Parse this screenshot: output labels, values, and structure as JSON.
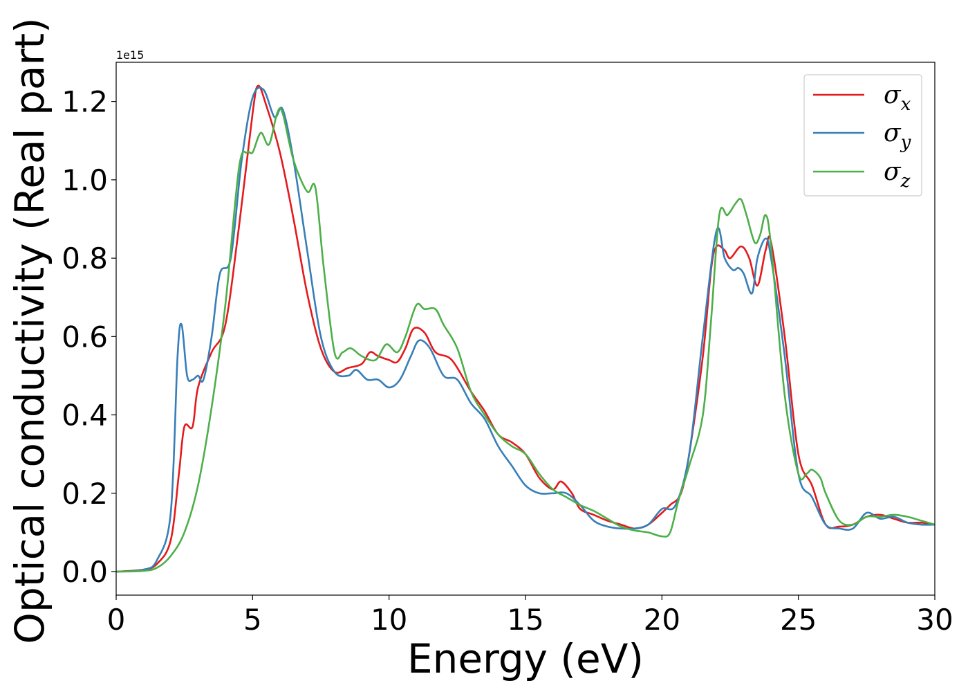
{
  "chart_data": {
    "type": "line",
    "xlabel": "Energy (eV)",
    "ylabel": "Optical conductivity (Real part)",
    "y_offset_label": "1e15",
    "xlim": [
      0,
      30
    ],
    "ylim": [
      -0.06,
      1.3
    ],
    "x_ticks": [
      0,
      5,
      10,
      15,
      20,
      25,
      30
    ],
    "x_tick_labels": [
      "0",
      "5",
      "10",
      "15",
      "20",
      "25",
      "30"
    ],
    "y_ticks": [
      0.0,
      0.2,
      0.4,
      0.6,
      0.8,
      1.0,
      1.2
    ],
    "y_tick_labels": [
      "0.0",
      "0.2",
      "0.4",
      "0.6",
      "0.8",
      "1.0",
      "1.2"
    ],
    "grid": false,
    "legend_position": "top-right",
    "series": [
      {
        "name": "σx",
        "legend_symbol": "σ",
        "legend_subscript": "x",
        "color": "#e41a1c",
        "x": [
          0,
          1,
          1.5,
          2,
          2.3,
          2.5,
          2.8,
          3,
          3.5,
          4,
          4.5,
          5,
          5.2,
          5.5,
          6,
          6.5,
          7,
          7.5,
          8,
          8.5,
          9,
          9.3,
          9.6,
          10,
          10.3,
          10.6,
          10.9,
          11.3,
          11.7,
          12.3,
          13,
          13.5,
          14,
          14.5,
          15,
          15.5,
          16,
          16.3,
          16.7,
          17,
          17.5,
          18,
          18.5,
          19,
          19.5,
          20,
          20.3,
          20.7,
          21,
          21.5,
          21.8,
          22,
          22.3,
          22.5,
          22.9,
          23.2,
          23.5,
          23.8,
          24,
          24.5,
          25,
          25.5,
          26,
          26.5,
          27,
          27.5,
          28,
          28.5,
          29,
          29.5,
          30
        ],
        "y": [
          0,
          0.005,
          0.02,
          0.08,
          0.25,
          0.37,
          0.37,
          0.47,
          0.56,
          0.63,
          0.88,
          1.17,
          1.24,
          1.19,
          1.07,
          0.9,
          0.71,
          0.57,
          0.51,
          0.52,
          0.53,
          0.56,
          0.55,
          0.54,
          0.535,
          0.57,
          0.62,
          0.61,
          0.56,
          0.54,
          0.46,
          0.41,
          0.35,
          0.33,
          0.3,
          0.24,
          0.21,
          0.23,
          0.2,
          0.16,
          0.145,
          0.13,
          0.12,
          0.11,
          0.12,
          0.15,
          0.17,
          0.2,
          0.3,
          0.55,
          0.77,
          0.83,
          0.82,
          0.8,
          0.83,
          0.8,
          0.73,
          0.82,
          0.84,
          0.6,
          0.3,
          0.22,
          0.12,
          0.115,
          0.12,
          0.14,
          0.145,
          0.135,
          0.125,
          0.125,
          0.12
        ]
      },
      {
        "name": "σy",
        "legend_symbol": "σ",
        "legend_subscript": "y",
        "color": "#377eb8",
        "x": [
          0,
          1,
          1.5,
          2,
          2.25,
          2.4,
          2.6,
          2.8,
          3,
          3.2,
          3.5,
          3.8,
          4.2,
          4.6,
          5,
          5.4,
          5.8,
          6.1,
          6.5,
          7,
          7.5,
          8,
          8.5,
          8.8,
          9.2,
          9.6,
          10,
          10.4,
          10.8,
          11.1,
          11.5,
          12,
          12.5,
          13,
          13.5,
          14,
          14.5,
          15,
          15.5,
          16,
          16.5,
          17,
          17.5,
          18,
          18.5,
          19,
          19.5,
          20,
          20.5,
          21,
          21.5,
          22,
          22.3,
          22.6,
          22.8,
          23,
          23.3,
          23.5,
          23.8,
          24,
          24.5,
          25,
          25.5,
          26,
          26.5,
          27,
          27.5,
          28,
          28.5,
          29,
          29.5,
          30
        ],
        "y": [
          0,
          0.005,
          0.03,
          0.15,
          0.55,
          0.63,
          0.5,
          0.49,
          0.5,
          0.49,
          0.6,
          0.76,
          0.8,
          1.05,
          1.21,
          1.23,
          1.16,
          1.18,
          1.05,
          0.82,
          0.6,
          0.51,
          0.5,
          0.515,
          0.49,
          0.49,
          0.47,
          0.49,
          0.55,
          0.59,
          0.57,
          0.5,
          0.49,
          0.43,
          0.39,
          0.32,
          0.27,
          0.22,
          0.2,
          0.2,
          0.2,
          0.17,
          0.13,
          0.115,
          0.11,
          0.11,
          0.12,
          0.16,
          0.17,
          0.3,
          0.6,
          0.87,
          0.8,
          0.77,
          0.775,
          0.76,
          0.71,
          0.8,
          0.85,
          0.8,
          0.55,
          0.25,
          0.19,
          0.12,
          0.11,
          0.11,
          0.15,
          0.135,
          0.14,
          0.125,
          0.12,
          0.12
        ]
      },
      {
        "name": "σz",
        "legend_symbol": "σ",
        "legend_subscript": "z",
        "color": "#4daf4a",
        "x": [
          0,
          1,
          1.5,
          2,
          2.5,
          3,
          3.5,
          4,
          4.5,
          4.8,
          5,
          5.3,
          5.6,
          5.9,
          6.1,
          6.5,
          7,
          7.3,
          7.6,
          8,
          8.3,
          8.6,
          9,
          9.5,
          9.9,
          10.3,
          10.6,
          11,
          11.3,
          11.7,
          12,
          12.5,
          13,
          13.5,
          14,
          14.5,
          15,
          15.5,
          16,
          16.5,
          17,
          17.5,
          18,
          18.5,
          19,
          19.5,
          20,
          20.3,
          20.6,
          21,
          21.5,
          21.8,
          22.1,
          22.4,
          22.7,
          22.9,
          23.1,
          23.4,
          23.6,
          23.8,
          24,
          24.5,
          25,
          25.3,
          25.5,
          25.8,
          26,
          26.5,
          27,
          27.5,
          28,
          28.5,
          29,
          29.5,
          30
        ],
        "y": [
          0,
          0.002,
          0.01,
          0.04,
          0.1,
          0.22,
          0.42,
          0.68,
          1.03,
          1.07,
          1.07,
          1.12,
          1.09,
          1.17,
          1.17,
          1.05,
          0.97,
          0.98,
          0.78,
          0.56,
          0.56,
          0.57,
          0.55,
          0.54,
          0.58,
          0.56,
          0.6,
          0.68,
          0.67,
          0.67,
          0.63,
          0.57,
          0.46,
          0.4,
          0.35,
          0.32,
          0.3,
          0.25,
          0.21,
          0.19,
          0.17,
          0.155,
          0.135,
          0.115,
          0.105,
          0.1,
          0.09,
          0.1,
          0.18,
          0.27,
          0.4,
          0.64,
          0.91,
          0.91,
          0.94,
          0.95,
          0.91,
          0.84,
          0.86,
          0.91,
          0.83,
          0.45,
          0.25,
          0.25,
          0.26,
          0.24,
          0.2,
          0.13,
          0.12,
          0.14,
          0.14,
          0.145,
          0.14,
          0.13,
          0.12
        ]
      }
    ]
  }
}
